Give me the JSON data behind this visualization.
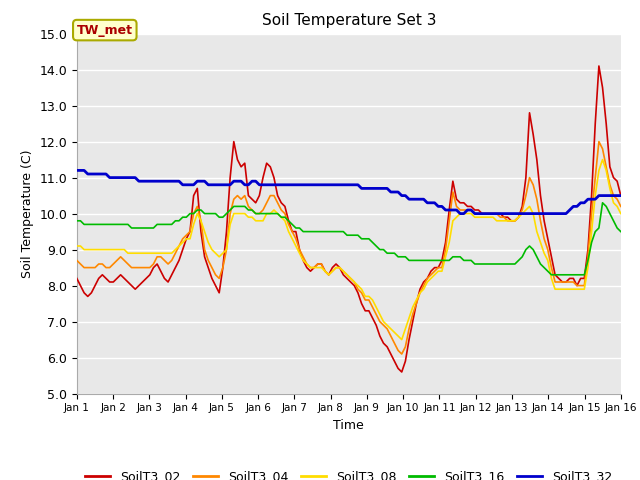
{
  "title": "Soil Temperature Set 3",
  "xlabel": "Time",
  "ylabel": "Soil Temperature (C)",
  "ylim": [
    5.0,
    15.0
  ],
  "ytick_labels": [
    "5.0",
    "6.0",
    "7.0",
    "8.0",
    "9.0",
    "10.0",
    "11.0",
    "12.0",
    "13.0",
    "14.0",
    "15.0"
  ],
  "xtick_labels": [
    "Jan 1",
    "Jan 2",
    "Jan 3",
    "Jan 4",
    "Jan 5",
    "Jan 6",
    "Jan 7",
    "Jan 8",
    "Jan 9",
    "Jan 10",
    "Jan 11",
    "Jan 12",
    "Jan 13",
    "Jan 14",
    "Jan 15",
    "Jan 16"
  ],
  "annotation_text": "TW_met",
  "bg_color": "#ffffff",
  "plot_bg_color": "#e8e8e8",
  "grid_color": "#ffffff",
  "series_colors": {
    "SoilT3_02": "#cc0000",
    "SoilT3_04": "#ff8800",
    "SoilT3_08": "#ffdd00",
    "SoilT3_16": "#00bb00",
    "SoilT3_32": "#0000cc"
  },
  "linewidths": {
    "SoilT3_02": 1.2,
    "SoilT3_04": 1.2,
    "SoilT3_08": 1.2,
    "SoilT3_16": 1.2,
    "SoilT3_32": 2.0
  }
}
